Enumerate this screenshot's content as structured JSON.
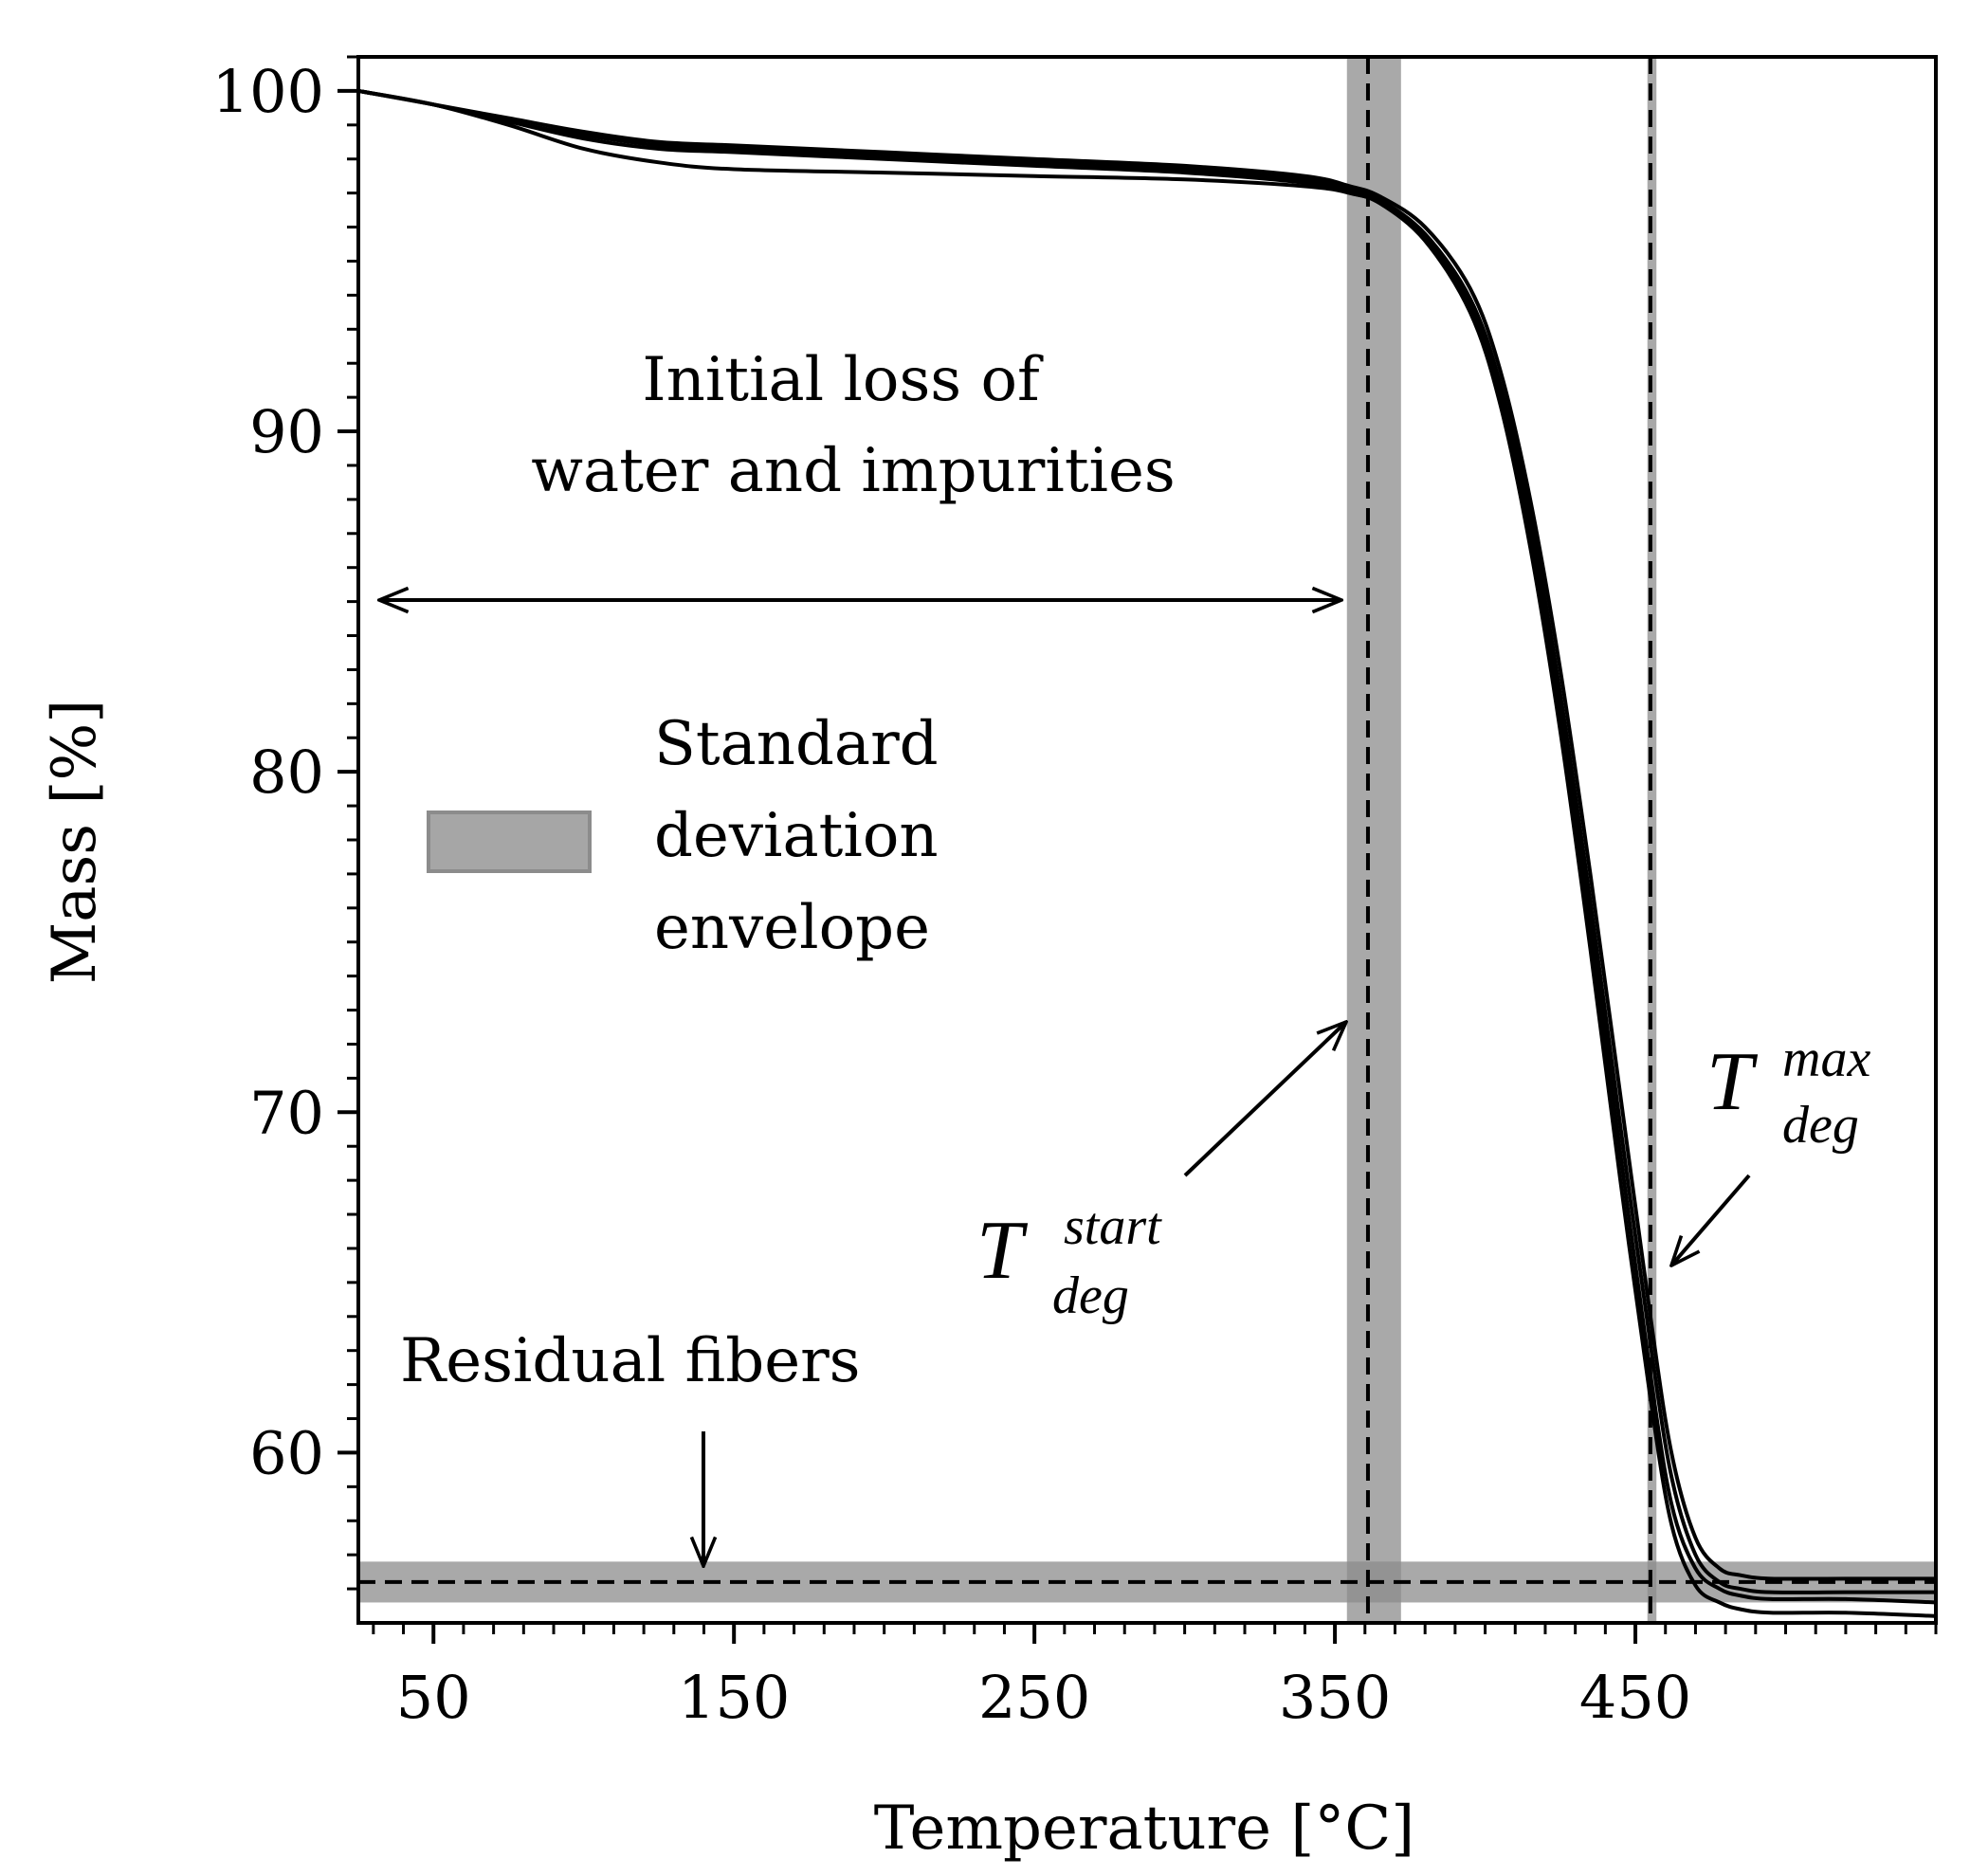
{
  "chart_data": {
    "type": "line",
    "title": "",
    "xlabel": "Temperature [°C]",
    "ylabel": "Mass [%]",
    "xlim": [
      25,
      550
    ],
    "ylim": [
      55,
      101
    ],
    "x_ticks": [
      50,
      150,
      250,
      350,
      450
    ],
    "y_ticks": [
      60,
      70,
      80,
      90,
      100
    ],
    "grid": false,
    "series": [
      {
        "x": [
          25,
          50,
          75,
          100,
          125,
          150,
          200,
          250,
          300,
          340,
          355,
          365,
          380,
          395,
          405,
          415,
          425,
          435,
          445,
          455,
          462,
          470,
          478,
          485,
          495,
          520,
          550
        ],
        "y": [
          100,
          99.6,
          99.2,
          98.8,
          98.5,
          98.4,
          98.2,
          98.0,
          97.8,
          97.5,
          97.2,
          96.9,
          96.0,
          94.2,
          91.8,
          88.0,
          83.0,
          77.0,
          70.5,
          64.0,
          60.0,
          57.5,
          56.6,
          56.4,
          56.3,
          56.3,
          56.3
        ]
      },
      {
        "x": [
          25,
          50,
          75,
          100,
          125,
          150,
          200,
          250,
          300,
          340,
          355,
          365,
          380,
          395,
          405,
          415,
          425,
          435,
          445,
          455,
          462,
          470,
          478,
          485,
          495,
          520,
          550
        ],
        "y": [
          100,
          99.6,
          99.1,
          98.7,
          98.4,
          98.3,
          98.1,
          97.9,
          97.7,
          97.4,
          97.1,
          96.8,
          95.8,
          93.9,
          91.4,
          87.5,
          82.3,
          76.2,
          69.6,
          63.2,
          59.3,
          57.0,
          56.2,
          56.0,
          55.9,
          55.9,
          55.9
        ]
      },
      {
        "x": [
          25,
          50,
          75,
          100,
          125,
          150,
          200,
          250,
          300,
          340,
          355,
          365,
          380,
          395,
          405,
          415,
          425,
          435,
          445,
          455,
          462,
          470,
          478,
          485,
          495,
          520,
          550
        ],
        "y": [
          100,
          99.6,
          99.0,
          98.3,
          97.9,
          97.7,
          97.6,
          97.5,
          97.4,
          97.2,
          97.0,
          96.7,
          95.7,
          93.7,
          91.1,
          87.0,
          81.7,
          75.5,
          68.8,
          62.3,
          58.5,
          56.6,
          56.0,
          55.8,
          55.7,
          55.7,
          55.6
        ]
      },
      {
        "x": [
          25,
          50,
          75,
          100,
          125,
          150,
          200,
          250,
          300,
          340,
          355,
          365,
          380,
          395,
          405,
          415,
          425,
          435,
          445,
          455,
          462,
          470,
          478,
          485,
          495,
          520,
          550
        ],
        "y": [
          100,
          99.6,
          99.1,
          98.6,
          98.3,
          98.2,
          98.0,
          97.8,
          97.6,
          97.3,
          97.0,
          96.7,
          95.6,
          93.5,
          90.8,
          86.6,
          81.2,
          74.8,
          68.0,
          61.6,
          57.9,
          56.1,
          55.6,
          55.4,
          55.3,
          55.3,
          55.2
        ]
      }
    ],
    "reference_lines": {
      "t_start": 361,
      "t_start_band": [
        354,
        372
      ],
      "t_max": 455,
      "t_max_band": [
        454,
        457
      ],
      "residual": 56.2,
      "residual_band": [
        55.6,
        56.8
      ]
    },
    "annotations": {
      "initial_loss_line1": "Initial loss of",
      "initial_loss_line2": "water and impurities",
      "residual_fibers": "Residual fibers",
      "legend_line1": "Standard",
      "legend_line2": "deviation",
      "legend_line3": "envelope",
      "t_symbol": "T",
      "t_start_sup": "start",
      "t_start_sub": "deg",
      "t_max_sup": "max",
      "t_max_sub": "deg"
    },
    "colors": {
      "line": "#000000",
      "band": "#8c8c8c"
    }
  }
}
